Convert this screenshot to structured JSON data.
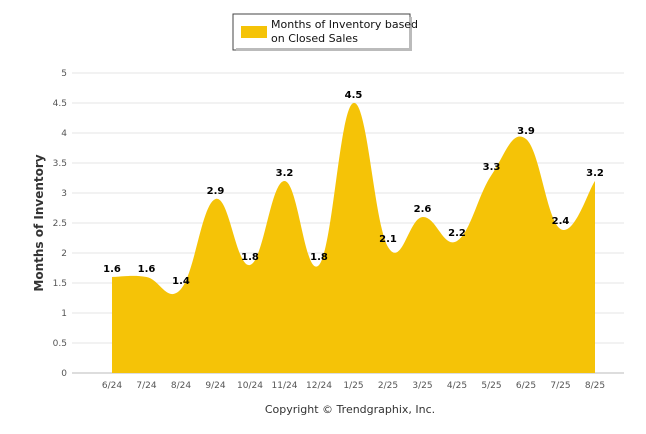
{
  "chart_data": {
    "type": "area",
    "categories": [
      "6/24",
      "7/24",
      "8/24",
      "9/24",
      "10/24",
      "11/24",
      "12/24",
      "1/25",
      "2/25",
      "3/25",
      "4/25",
      "5/25",
      "6/25",
      "7/25",
      "8/25"
    ],
    "series": [
      {
        "name": "Months of Inventory based on Closed Sales",
        "values": [
          1.6,
          1.6,
          1.4,
          2.9,
          1.8,
          3.2,
          1.8,
          4.5,
          2.1,
          2.6,
          2.2,
          3.3,
          3.9,
          2.4,
          3.2
        ],
        "color": "#F5C307"
      }
    ],
    "legend_lines": [
      "Months of Inventory based",
      "on Closed Sales"
    ],
    "xlabel": "",
    "ylabel": "Months of Inventory",
    "ylim": [
      0,
      5
    ],
    "yticks": [
      "0",
      "0.5",
      "1",
      "1.5",
      "2",
      "2.5",
      "3",
      "3.5",
      "4",
      "4.5",
      "5"
    ],
    "grid": true,
    "legend_position": "top-center",
    "footer": "Copyright © Trendgraphix, Inc."
  }
}
